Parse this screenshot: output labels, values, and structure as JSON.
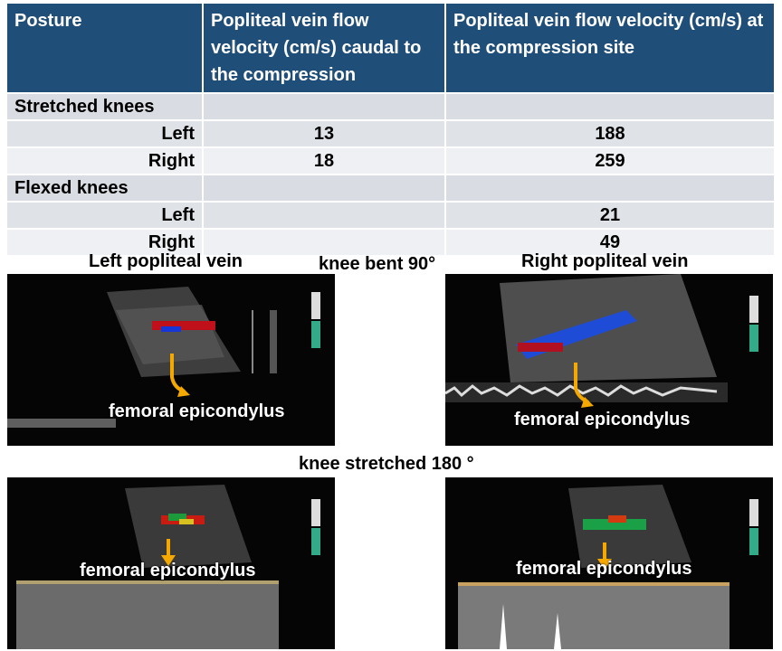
{
  "table": {
    "headers": [
      "Posture",
      "Popliteal vein flow velocity (cm/s) caudal to the compression",
      "Popliteal vein flow velocity (cm/s) at the compression site"
    ],
    "groups": [
      {
        "label": "Stretched knees",
        "rows": [
          {
            "side": "Left",
            "caudal": "13",
            "site": "188"
          },
          {
            "side": "Right",
            "caudal": "18",
            "site": "259"
          }
        ]
      },
      {
        "label": "Flexed knees",
        "rows": [
          {
            "side": "Left",
            "caudal": "",
            "site": "21"
          },
          {
            "side": "Right",
            "caudal": "",
            "site": "49"
          }
        ]
      }
    ]
  },
  "captions": {
    "left_vein": "Left popliteal vein",
    "bent": "knee bent 90°",
    "right_vein": "Right popliteal vein",
    "stretched": "knee stretched 180 °"
  },
  "ultrasound": {
    "annotation": "femoral epicondylus",
    "arrow_color": "#f5a800"
  }
}
